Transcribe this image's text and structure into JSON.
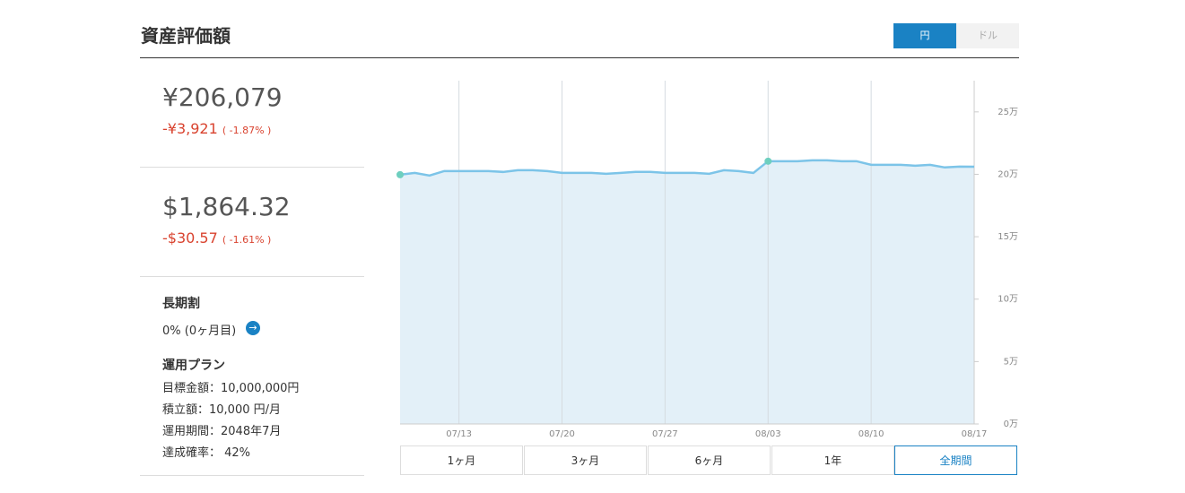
{
  "header": {
    "title": "資産評価額",
    "toggle": [
      "円",
      "ドル"
    ]
  },
  "summary": [
    {
      "amount": "¥206,079",
      "change": "-¥3,921",
      "percent": "( -1.87% )"
    },
    {
      "amount": "$1,864.32",
      "change": "-$30.57",
      "percent": "( -1.61% )"
    }
  ],
  "discount": {
    "title": "長期割",
    "value": "0% (0ヶ月目)"
  },
  "plan": {
    "title": "運用プラン",
    "rows": [
      "目標金額：10,000,000円",
      "積立額：10,000 円/月",
      "運用期間：2048年7月",
      "達成確率： 42%"
    ]
  },
  "periods": [
    "1ヶ月",
    "3ヶ月",
    "6ヶ月",
    "1年",
    "全期間"
  ],
  "chart_data": {
    "type": "area",
    "categories": [
      null,
      null,
      null,
      null,
      "07/13",
      null,
      null,
      null,
      null,
      null,
      null,
      "07/20",
      null,
      null,
      null,
      null,
      null,
      null,
      "07/27",
      null,
      null,
      null,
      null,
      null,
      null,
      "08/03",
      null,
      null,
      null,
      null,
      null,
      null,
      "08/10",
      null,
      null,
      null,
      null,
      null,
      null,
      "08/17"
    ],
    "series": [
      {
        "color": "#7cc4e8",
        "values": [
          199700,
          201100,
          199000,
          202600,
          202600,
          202600,
          202600,
          201900,
          203300,
          203300,
          202600,
          201100,
          201100,
          201100,
          200400,
          201100,
          201900,
          201900,
          201100,
          201100,
          201100,
          200400,
          203300,
          202600,
          201100,
          210500,
          210500,
          210500,
          211200,
          211200,
          210500,
          210500,
          207600,
          207600,
          207600,
          206900,
          207600,
          205500,
          206200,
          206079
        ]
      }
    ],
    "markers": [
      0,
      25
    ],
    "marker_color": "#6ecfbf",
    "fill": "#e3f0f8",
    "ylim": [
      0,
      275000
    ],
    "yticks": [
      {
        "value": 0,
        "label": "0万"
      },
      {
        "value": 50000,
        "label": "5万"
      },
      {
        "value": 100000,
        "label": "10万"
      },
      {
        "value": 150000,
        "label": "15万"
      },
      {
        "value": 200000,
        "label": "20万"
      },
      {
        "value": 250000,
        "label": "25万"
      }
    ],
    "grid": true
  }
}
